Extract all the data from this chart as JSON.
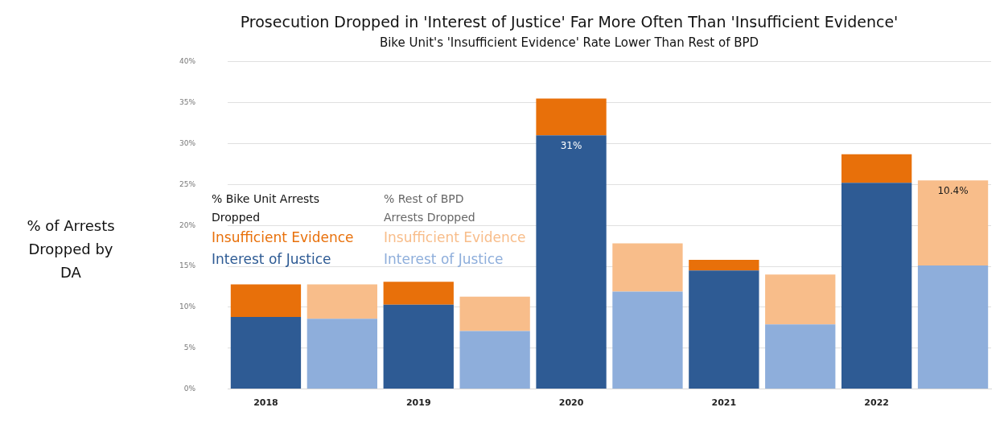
{
  "chart_data": {
    "type": "bar",
    "title": "Prosecution Dropped in 'Interest of Justice' Far More Often Than 'Insufficient Evidence'",
    "subtitle": "Bike Unit's 'Insufficient Evidence' Rate Lower Than Rest of BPD",
    "ylabel": "% of Arrests Dropped by DA",
    "categories": [
      "2018",
      null,
      "2019",
      null,
      "2020",
      null,
      "2021",
      null,
      "2022",
      null
    ],
    "stacked": true,
    "series": [
      {
        "name": "Interest of Justice",
        "color": "#2e5b94",
        "values": [
          8.8,
          null,
          10.3,
          null,
          31,
          null,
          14.5,
          null,
          25.2,
          null
        ],
        "value_labels": [
          null,
          null,
          null,
          null,
          "31%",
          null,
          null,
          null,
          null,
          null
        ]
      },
      {
        "name": "Insufficient Evidence",
        "color": "#e8700a",
        "values": [
          4.0,
          null,
          2.8,
          null,
          4.5,
          null,
          1.3,
          null,
          3.5,
          null
        ]
      },
      {
        "name": "Interest of Justice",
        "color": "#8eaedb",
        "values": [
          null,
          8.6,
          null,
          7.1,
          null,
          11.9,
          null,
          7.9,
          null,
          15.1
        ]
      },
      {
        "name": "Insufficient Evidence",
        "color": "#f8bd8a",
        "values": [
          null,
          4.2,
          null,
          4.2,
          null,
          5.9,
          null,
          6.1,
          null,
          10.4
        ],
        "value_labels": [
          null,
          null,
          null,
          null,
          null,
          null,
          null,
          null,
          null,
          "10.4%"
        ]
      }
    ],
    "annotations": [
      "% Bike Unit Arrests Dropped",
      "% Rest of BPD Arrests Dropped"
    ],
    "ylim": [
      0,
      40
    ],
    "yticks": [
      {
        "value": 0,
        "label": "0%"
      },
      {
        "value": 5,
        "label": "5%"
      },
      {
        "value": 10,
        "label": "10%"
      },
      {
        "value": 15,
        "label": "15%"
      },
      {
        "value": 20,
        "label": "20%"
      },
      {
        "value": 25,
        "label": "25%"
      },
      {
        "value": 30,
        "label": "30%"
      },
      {
        "value": 35,
        "label": "35%"
      },
      {
        "value": 40,
        "label": "40%"
      }
    ],
    "grid": "y",
    "legend": "left"
  }
}
